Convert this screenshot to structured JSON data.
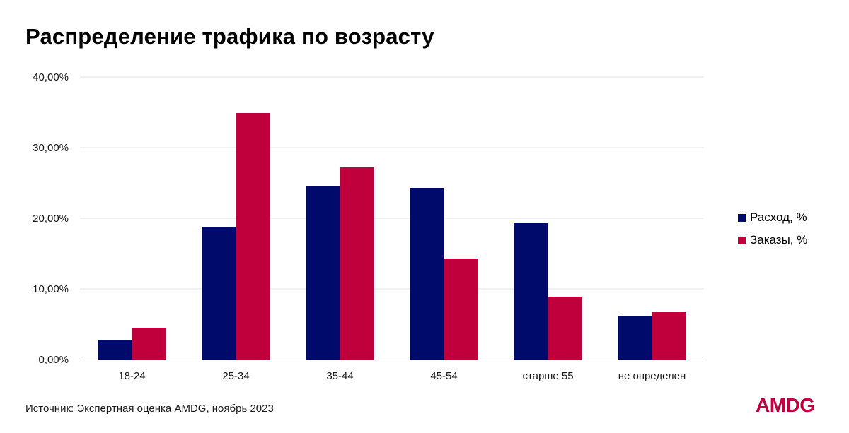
{
  "title": "Распределение трафика по возрасту",
  "source": "Источник: Экспертная оценка AMDG, ноябрь 2023",
  "logo": "AMDG",
  "colors": {
    "series_1": "#000a6b",
    "series_2": "#c0003c",
    "grid": "#e3e3e3",
    "axis": "#bdbdbd",
    "logo": "#c0003c"
  },
  "chart_data": {
    "type": "bar",
    "title": "Распределение трафика по возрасту",
    "xlabel": "",
    "ylabel": "",
    "categories": [
      "18-24",
      "25-34",
      "35-44",
      "45-54",
      "старше 55",
      "не определен"
    ],
    "series": [
      {
        "name": "Расход, %",
        "values": [
          2.8,
          18.8,
          24.5,
          24.3,
          19.4,
          6.2
        ]
      },
      {
        "name": "Заказы, %",
        "values": [
          4.5,
          34.9,
          27.2,
          14.3,
          8.9,
          6.7
        ]
      }
    ],
    "ylim": [
      0,
      40
    ],
    "yticks": [
      "0,00%",
      "10,00%",
      "20,00%",
      "30,00%",
      "40,00%"
    ],
    "grid": true,
    "legend": "right"
  }
}
